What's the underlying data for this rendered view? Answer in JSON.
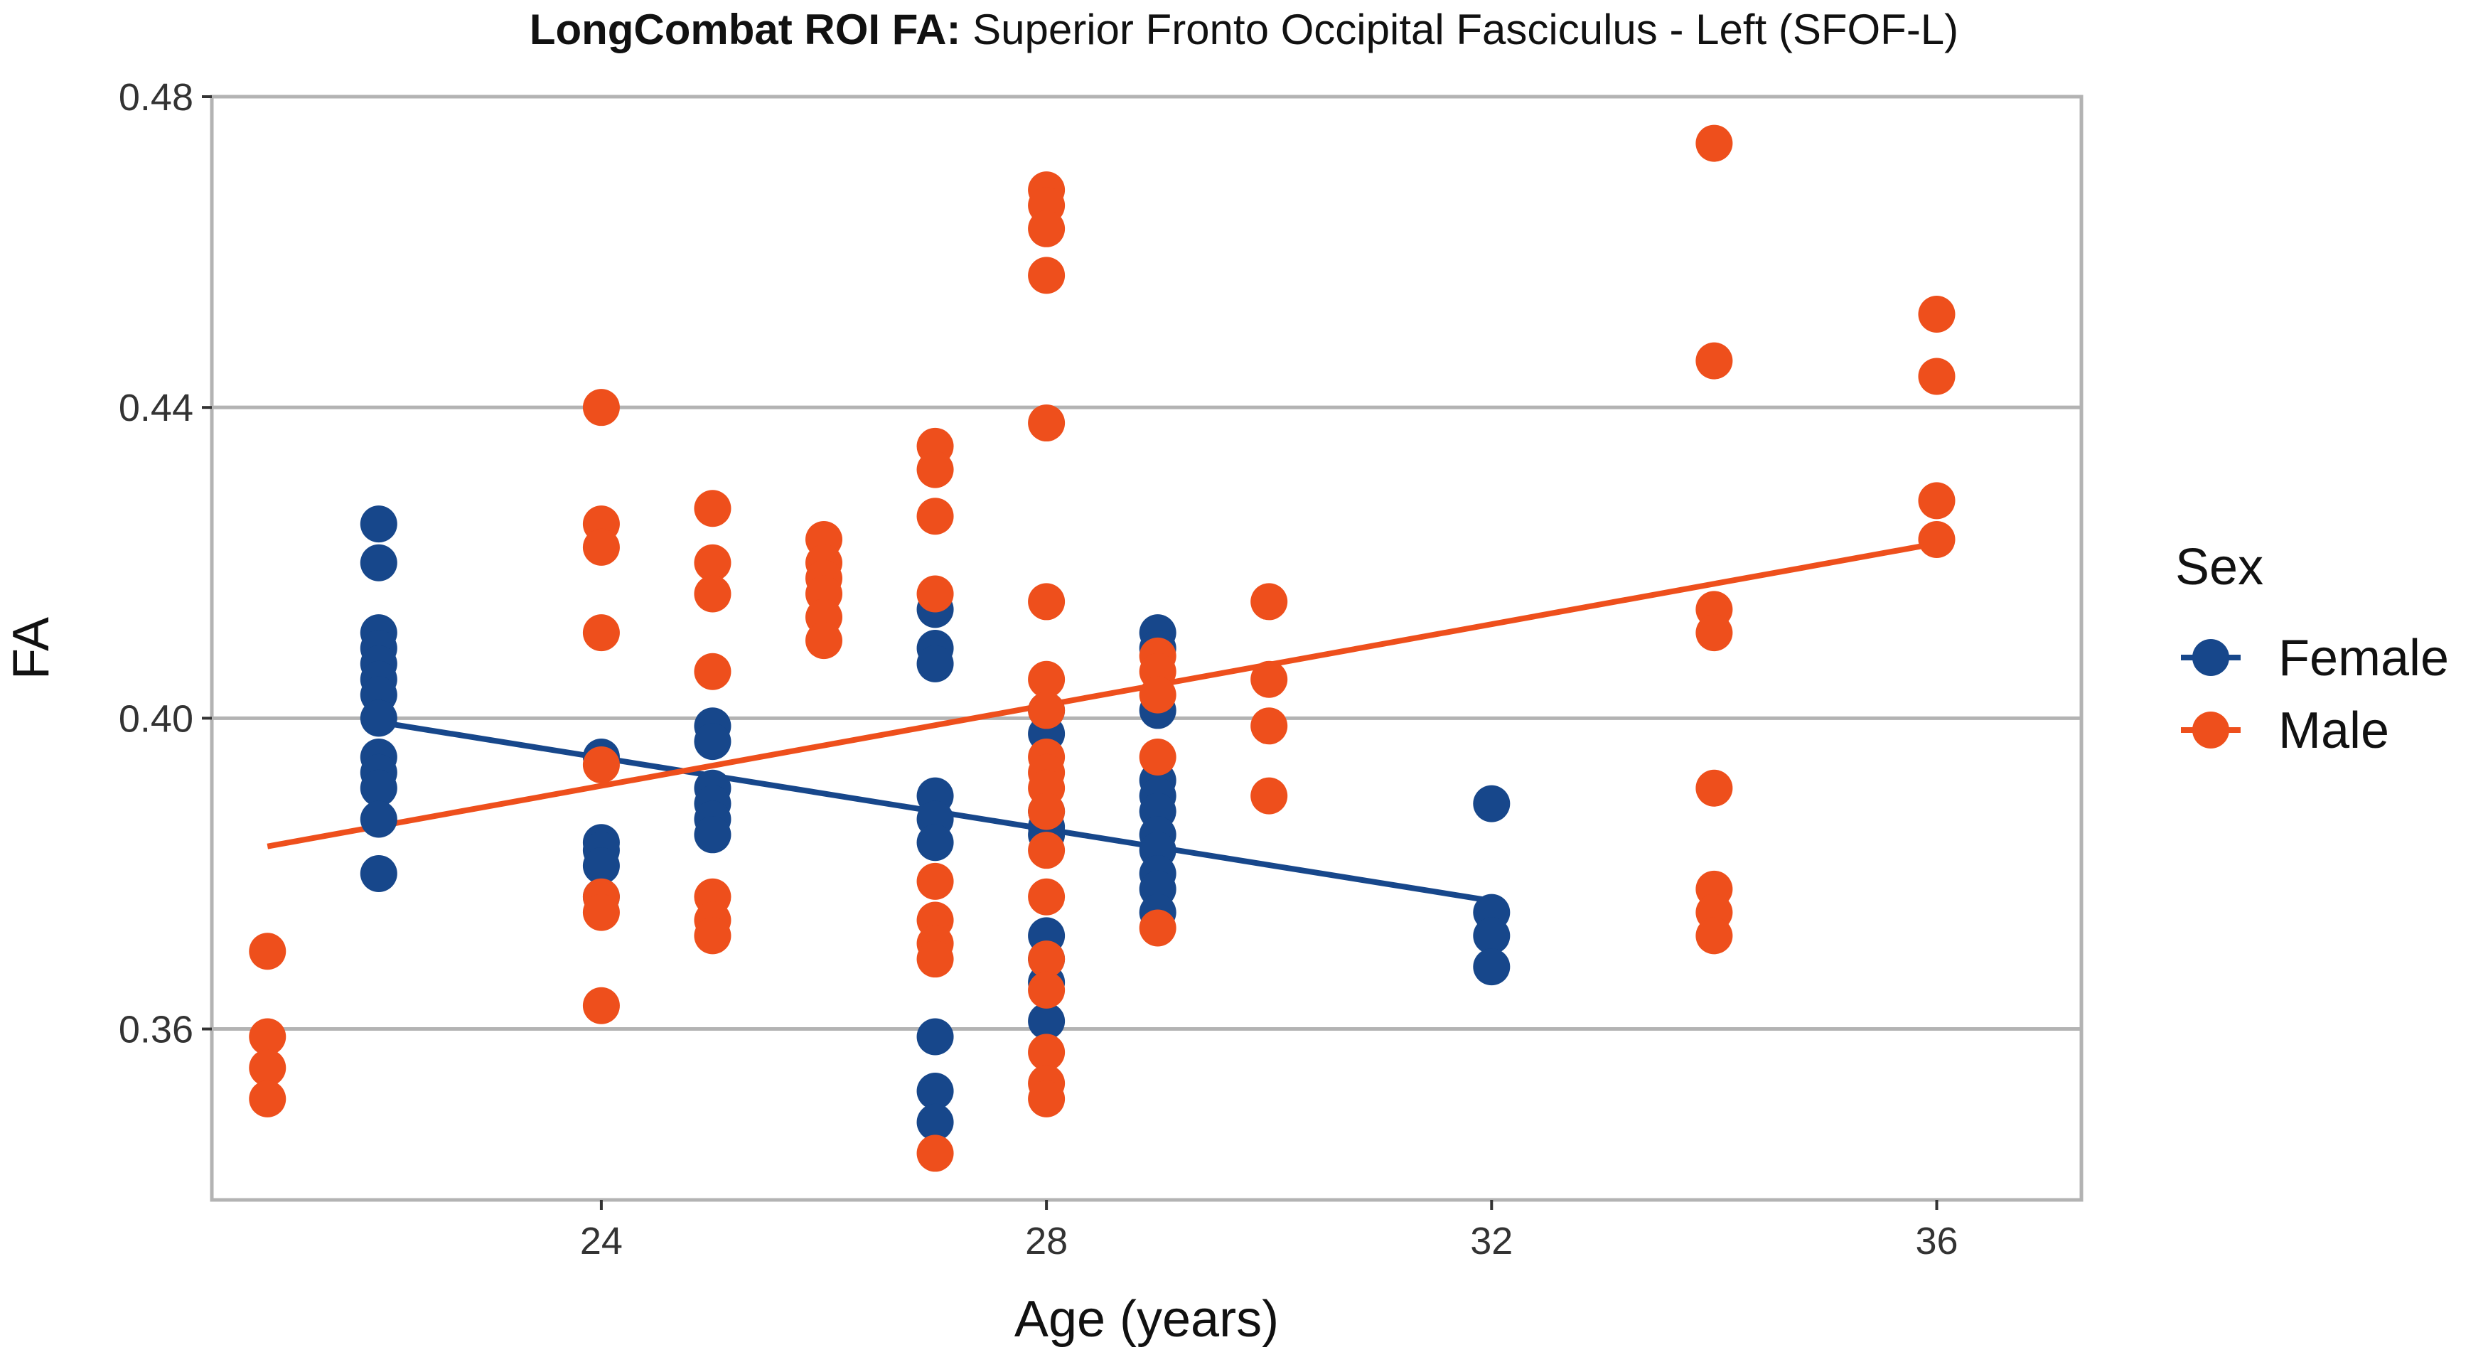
{
  "chart_data": {
    "type": "scatter",
    "title_bold": "LongCombat ROI FA:",
    "title_rest": " Superior Fronto Occipital Fasciculus - Left (SFOF-L)",
    "xlabel": "Age (years)",
    "ylabel": "FA",
    "xlim": [
      20.5,
      37.3
    ],
    "ylim": [
      0.338,
      0.48
    ],
    "xticks": [
      24,
      28,
      32,
      36
    ],
    "xtick_labels": [
      "24",
      "28",
      "32",
      "36"
    ],
    "yticks": [
      0.36,
      0.4,
      0.44,
      0.48
    ],
    "ytick_labels": [
      "0.36",
      "0.40",
      "0.44",
      "0.48"
    ],
    "grid": "horizontal",
    "legend_title": "Sex",
    "legend_position": "right",
    "series": [
      {
        "name": "Female",
        "color": "#17478b",
        "points": [
          [
            22,
            0.425
          ],
          [
            22,
            0.42
          ],
          [
            22,
            0.411
          ],
          [
            22,
            0.409
          ],
          [
            22,
            0.407
          ],
          [
            22,
            0.405
          ],
          [
            22,
            0.403
          ],
          [
            22,
            0.4
          ],
          [
            22,
            0.395
          ],
          [
            22,
            0.393
          ],
          [
            22,
            0.391
          ],
          [
            22,
            0.387
          ],
          [
            22,
            0.38
          ],
          [
            24,
            0.395
          ],
          [
            24,
            0.384
          ],
          [
            24,
            0.383
          ],
          [
            24,
            0.381
          ],
          [
            24,
            0.377
          ],
          [
            25,
            0.399
          ],
          [
            25,
            0.397
          ],
          [
            25,
            0.391
          ],
          [
            25,
            0.389
          ],
          [
            25,
            0.387
          ],
          [
            25,
            0.385
          ],
          [
            27,
            0.414
          ],
          [
            27,
            0.409
          ],
          [
            27,
            0.407
          ],
          [
            27,
            0.39
          ],
          [
            27,
            0.387
          ],
          [
            27,
            0.384
          ],
          [
            27,
            0.359
          ],
          [
            27,
            0.352
          ],
          [
            27,
            0.348
          ],
          [
            28,
            0.401
          ],
          [
            28,
            0.398
          ],
          [
            28,
            0.388
          ],
          [
            28,
            0.386
          ],
          [
            28,
            0.385
          ],
          [
            28,
            0.372
          ],
          [
            28,
            0.369
          ],
          [
            28,
            0.366
          ],
          [
            28,
            0.361
          ],
          [
            29,
            0.411
          ],
          [
            29,
            0.409
          ],
          [
            29,
            0.401
          ],
          [
            29,
            0.392
          ],
          [
            29,
            0.39
          ],
          [
            29,
            0.388
          ],
          [
            29,
            0.385
          ],
          [
            29,
            0.383
          ],
          [
            29,
            0.38
          ],
          [
            29,
            0.378
          ],
          [
            29,
            0.375
          ],
          [
            32,
            0.389
          ],
          [
            32,
            0.375
          ],
          [
            32,
            0.372
          ],
          [
            32,
            0.368
          ]
        ],
        "trend": [
          [
            22,
            0.3995
          ],
          [
            32,
            0.3765
          ]
        ]
      },
      {
        "name": "Male",
        "color": "#ee4f1c",
        "points": [
          [
            21,
            0.37
          ],
          [
            21,
            0.359
          ],
          [
            21,
            0.355
          ],
          [
            21,
            0.351
          ],
          [
            24,
            0.44
          ],
          [
            24,
            0.425
          ],
          [
            24,
            0.422
          ],
          [
            24,
            0.411
          ],
          [
            24,
            0.394
          ],
          [
            24,
            0.377
          ],
          [
            24,
            0.375
          ],
          [
            24,
            0.363
          ],
          [
            25,
            0.427
          ],
          [
            25,
            0.42
          ],
          [
            25,
            0.416
          ],
          [
            25,
            0.406
          ],
          [
            25,
            0.377
          ],
          [
            25,
            0.374
          ],
          [
            25,
            0.372
          ],
          [
            26,
            0.423
          ],
          [
            26,
            0.42
          ],
          [
            26,
            0.418
          ],
          [
            26,
            0.416
          ],
          [
            26,
            0.413
          ],
          [
            26,
            0.41
          ],
          [
            27,
            0.435
          ],
          [
            27,
            0.432
          ],
          [
            27,
            0.426
          ],
          [
            27,
            0.416
          ],
          [
            27,
            0.379
          ],
          [
            27,
            0.374
          ],
          [
            27,
            0.371
          ],
          [
            27,
            0.369
          ],
          [
            27,
            0.344
          ],
          [
            28,
            0.468
          ],
          [
            28,
            0.466
          ],
          [
            28,
            0.463
          ],
          [
            28,
            0.457
          ],
          [
            28,
            0.438
          ],
          [
            28,
            0.415
          ],
          [
            28,
            0.405
          ],
          [
            28,
            0.401
          ],
          [
            28,
            0.395
          ],
          [
            28,
            0.393
          ],
          [
            28,
            0.391
          ],
          [
            28,
            0.388
          ],
          [
            28,
            0.383
          ],
          [
            28,
            0.377
          ],
          [
            28,
            0.369
          ],
          [
            28,
            0.365
          ],
          [
            28,
            0.357
          ],
          [
            28,
            0.353
          ],
          [
            28,
            0.351
          ],
          [
            29,
            0.408
          ],
          [
            29,
            0.406
          ],
          [
            29,
            0.403
          ],
          [
            29,
            0.395
          ],
          [
            29,
            0.373
          ],
          [
            30,
            0.415
          ],
          [
            30,
            0.405
          ],
          [
            30,
            0.399
          ],
          [
            30,
            0.39
          ],
          [
            34,
            0.474
          ],
          [
            34,
            0.446
          ],
          [
            34,
            0.414
          ],
          [
            34,
            0.411
          ],
          [
            34,
            0.391
          ],
          [
            34,
            0.378
          ],
          [
            34,
            0.375
          ],
          [
            34,
            0.372
          ],
          [
            36,
            0.452
          ],
          [
            36,
            0.444
          ],
          [
            36,
            0.428
          ],
          [
            36,
            0.423
          ]
        ],
        "trend": [
          [
            21,
            0.3835
          ],
          [
            36,
            0.4225
          ]
        ]
      }
    ]
  }
}
